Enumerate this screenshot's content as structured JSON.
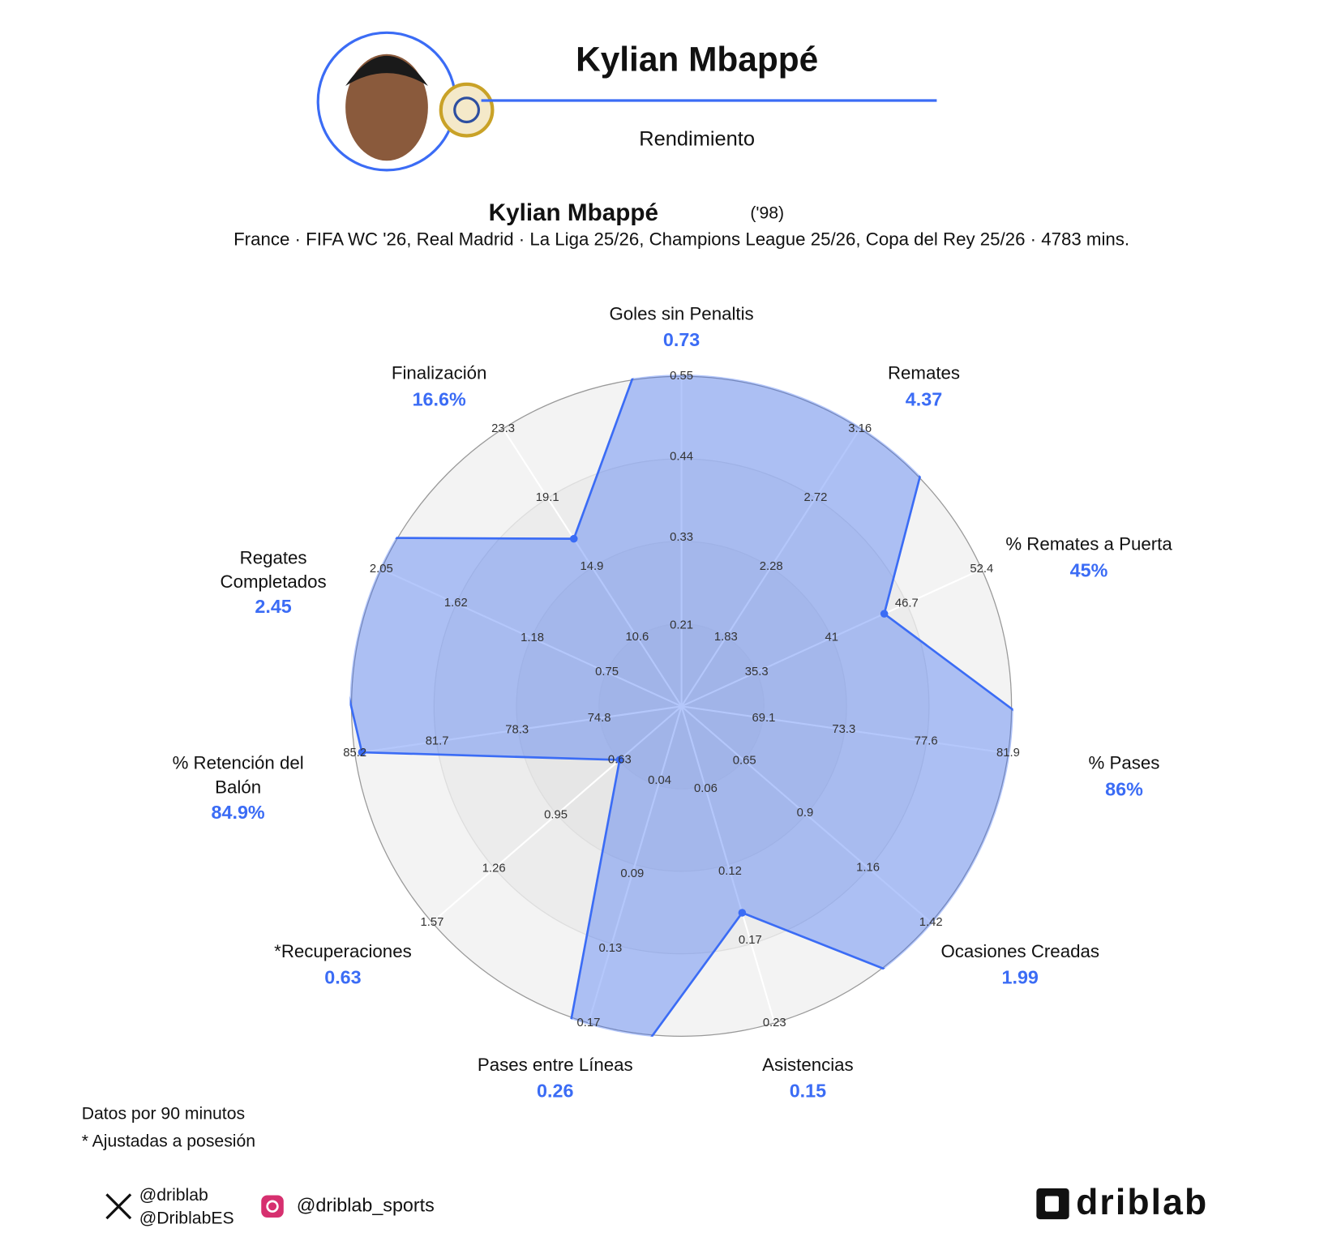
{
  "header": {
    "name": "Kylian Mbappé",
    "section": "Rendimiento"
  },
  "chart_data": {
    "type": "radar",
    "title": "Kylian Mbappé",
    "title_note": "('98)",
    "subtitle": "France · FIFA WC '26, Real Madrid · La Liga 25/26, Champions League 25/26, Copa del Rey 25/26 · 4783 mins.",
    "color": "#3b6cf5",
    "categories": [
      "Goles sin Penaltis",
      "Remates",
      "% Remates a Puerta",
      "% Pases",
      "Ocasiones Creadas",
      "Asistencias",
      "Pases entre Líneas",
      "*Recuperaciones",
      "% Retención del Balón",
      "Regates Completados",
      "Finalización"
    ],
    "values": [
      0.73,
      4.37,
      45,
      86,
      1.99,
      0.15,
      0.26,
      0.63,
      84.9,
      2.45,
      16.6
    ],
    "value_labels": [
      "0.73",
      "4.37",
      "45%",
      "86%",
      "1.99",
      "0.15",
      "0.26",
      "0.63",
      "84.9%",
      "2.45",
      "16.6%"
    ],
    "rticks": [
      [
        0.21,
        0.33,
        0.44,
        0.55
      ],
      [
        1.83,
        2.28,
        2.72,
        3.16
      ],
      [
        35.3,
        41,
        46.7,
        52.4
      ],
      [
        69.1,
        73.3,
        77.6,
        81.9
      ],
      [
        0.65,
        0.9,
        1.16,
        1.42
      ],
      [
        0.06,
        0.12,
        0.17,
        0.23
      ],
      [
        0.04,
        0.09,
        0.13,
        0.17
      ],
      [
        0.63,
        0.95,
        1.26,
        1.57
      ],
      [
        74.8,
        78.3,
        81.7,
        85.2
      ],
      [
        0.75,
        1.18,
        1.62,
        2.05
      ],
      [
        10.6,
        14.9,
        19.1,
        23.3
      ]
    ],
    "rlim": [
      [
        0.1,
        0.55
      ],
      [
        1.39,
        3.16
      ],
      [
        29.6,
        52.4
      ],
      [
        64.8,
        81.9
      ],
      [
        0.39,
        1.42
      ],
      [
        0,
        0.23
      ],
      [
        0,
        0.17
      ],
      [
        0.32,
        1.57
      ],
      [
        71.3,
        85.2
      ],
      [
        0.32,
        2.05
      ],
      [
        6.4,
        23.3
      ]
    ]
  },
  "footnotes": [
    "Datos por 90 minutos",
    "* Ajustadas a posesión"
  ],
  "social": {
    "x": [
      "@driblab",
      "@DriblabES"
    ],
    "instagram": "@driblab_sports"
  },
  "brand": "driblab"
}
